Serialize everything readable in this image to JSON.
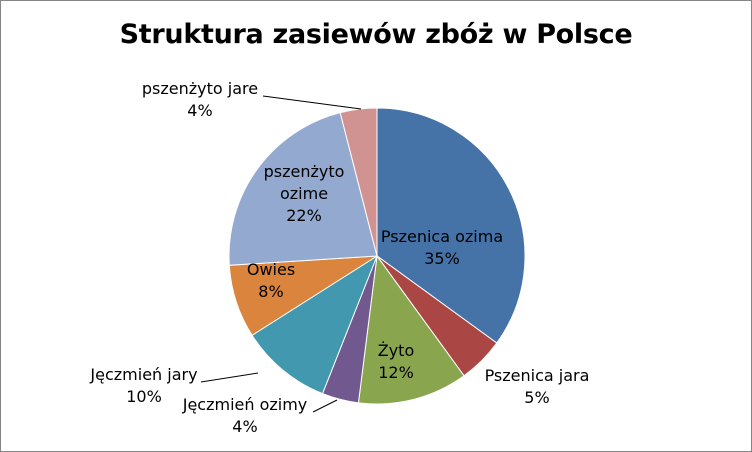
{
  "chart_data": {
    "type": "pie",
    "title": "Struktura zasiewów zbóż w Polsce",
    "legend": "none",
    "slices": [
      {
        "name": "Pszenica ozima",
        "value": 35,
        "label": "35%",
        "color": "#4572A7"
      },
      {
        "name": "Pszenica jara",
        "value": 5,
        "label": "5%",
        "color": "#AA4643"
      },
      {
        "name": "Żyto",
        "value": 12,
        "label": "12%",
        "color": "#89A54E"
      },
      {
        "name": "Jęczmień ozimy",
        "value": 4,
        "label": "4%",
        "color": "#71588F"
      },
      {
        "name": "Jęczmień jary",
        "value": 10,
        "label": "10%",
        "color": "#4198AF"
      },
      {
        "name": "Owies",
        "value": 8,
        "label": "8%",
        "color": "#DB843D"
      },
      {
        "name": "pszenżyto ozime",
        "value": 22,
        "label": "22%",
        "color": "#93A9CF"
      },
      {
        "name": "pszenżyto jare",
        "value": 4,
        "label": "4%",
        "color": "#D19392"
      }
    ]
  }
}
